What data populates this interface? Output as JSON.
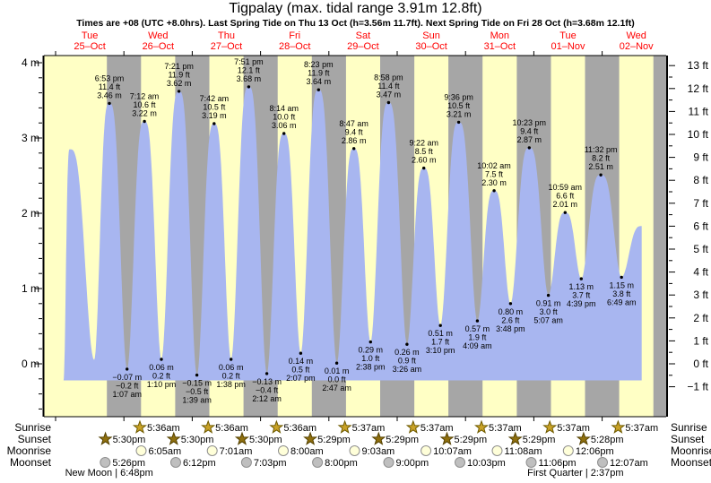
{
  "title": "Tigpalay (max. tidal range 3.91m 12.8ft)",
  "subtitle": "Times are +08 (UTC +8.0hrs). Last Spring Tide on Thu 13 Oct (h=3.56m 11.7ft). Next Spring Tide on Fri 28 Oct (h=3.68m 12.1ft)",
  "days": [
    {
      "name": "Tue",
      "date": "25–Oct"
    },
    {
      "name": "Wed",
      "date": "26–Oct"
    },
    {
      "name": "Thu",
      "date": "27–Oct"
    },
    {
      "name": "Fri",
      "date": "28–Oct"
    },
    {
      "name": "Sat",
      "date": "29–Oct"
    },
    {
      "name": "Sun",
      "date": "30–Oct"
    },
    {
      "name": "Mon",
      "date": "31–Oct"
    },
    {
      "name": "Tue",
      "date": "01–Nov"
    },
    {
      "name": "Wed",
      "date": "02–Nov"
    }
  ],
  "axes": {
    "left_ticks": [
      {
        "label": "4 m",
        "m": 4
      },
      {
        "label": "3 m",
        "m": 3
      },
      {
        "label": "2 m",
        "m": 2
      },
      {
        "label": "1 m",
        "m": 1
      },
      {
        "label": "0 m",
        "m": 0
      }
    ],
    "right_ticks": [
      {
        "label": "13 ft",
        "ft": 13
      },
      {
        "label": "12 ft",
        "ft": 12
      },
      {
        "label": "11 ft",
        "ft": 11
      },
      {
        "label": "10 ft",
        "ft": 10
      },
      {
        "label": "9 ft",
        "ft": 9
      },
      {
        "label": "8 ft",
        "ft": 8
      },
      {
        "label": "7 ft",
        "ft": 7
      },
      {
        "label": "6 ft",
        "ft": 6
      },
      {
        "label": "5 ft",
        "ft": 5
      },
      {
        "label": "4 ft",
        "ft": 4
      },
      {
        "label": "3 ft",
        "ft": 3
      },
      {
        "label": "2 ft",
        "ft": 2
      },
      {
        "label": "1 ft",
        "ft": 1
      },
      {
        "label": "0 ft",
        "ft": 0
      },
      {
        "label": "−1 ft",
        "ft": -1
      }
    ]
  },
  "chart_data": {
    "type": "area",
    "title": "Tigpalay (max. tidal range 3.91m 12.8ft)",
    "ylabel_left": "meters",
    "ylabel_right": "feet",
    "ylim_m": [
      -0.7,
      4.13
    ],
    "highs": [
      {
        "day": 0,
        "hours": 18.883,
        "m": 3.46,
        "labels": [
          "6:53 pm",
          "11.4 ft",
          "3.46 m"
        ]
      },
      {
        "day": 1,
        "hours": 7.2,
        "m": 3.22,
        "labels": [
          "7:12 am",
          "10.6 ft",
          "3.22 m"
        ]
      },
      {
        "day": 1,
        "hours": 19.35,
        "m": 3.62,
        "labels": [
          "7:21 pm",
          "11.9 ft",
          "3.62 m"
        ]
      },
      {
        "day": 2,
        "hours": 7.7,
        "m": 3.19,
        "labels": [
          "7:42 am",
          "10.5 ft",
          "3.19 m"
        ]
      },
      {
        "day": 2,
        "hours": 19.85,
        "m": 3.68,
        "labels": [
          "7:51 pm",
          "12.1 ft",
          "3.68 m"
        ]
      },
      {
        "day": 3,
        "hours": 8.233,
        "m": 3.06,
        "labels": [
          "8:14 am",
          "10.0 ft",
          "3.06 m"
        ]
      },
      {
        "day": 3,
        "hours": 20.383,
        "m": 3.64,
        "labels": [
          "8:23 pm",
          "11.9 ft",
          "3.64 m"
        ]
      },
      {
        "day": 4,
        "hours": 8.783,
        "m": 2.86,
        "labels": [
          "8:47 am",
          "9.4 ft",
          "2.86 m"
        ]
      },
      {
        "day": 4,
        "hours": 20.967,
        "m": 3.47,
        "labels": [
          "8:58 pm",
          "11.4 ft",
          "3.47 m"
        ]
      },
      {
        "day": 5,
        "hours": 9.367,
        "m": 2.6,
        "labels": [
          "9:22 am",
          "8.5 ft",
          "2.60 m"
        ]
      },
      {
        "day": 5,
        "hours": 21.6,
        "m": 3.21,
        "labels": [
          "9:36 pm",
          "10.5 ft",
          "3.21 m"
        ]
      },
      {
        "day": 6,
        "hours": 10.033,
        "m": 2.3,
        "labels": [
          "10:02 am",
          "7.5 ft",
          "2.30 m"
        ]
      },
      {
        "day": 6,
        "hours": 22.383,
        "m": 2.87,
        "labels": [
          "10:23 pm",
          "9.4 ft",
          "2.87 m"
        ]
      },
      {
        "day": 7,
        "hours": 10.983,
        "m": 2.01,
        "labels": [
          "10:59 am",
          "6.6 ft",
          "2.01 m"
        ]
      },
      {
        "day": 7,
        "hours": 23.533,
        "m": 2.51,
        "labels": [
          "11:32 pm",
          "8.2 ft",
          "2.51 m"
        ]
      }
    ],
    "lows": [
      {
        "day": 1,
        "hours": 1.117,
        "m": -0.07,
        "labels": [
          "−0.07 m",
          "−0.2 ft",
          "1:07 am"
        ]
      },
      {
        "day": 1,
        "hours": 13.167,
        "m": 0.06,
        "labels": [
          "0.06 m",
          "0.2 ft",
          "1:10 pm"
        ]
      },
      {
        "day": 2,
        "hours": 1.65,
        "m": -0.15,
        "labels": [
          "−0.15 m",
          "−0.5 ft",
          "1:39 am"
        ]
      },
      {
        "day": 2,
        "hours": 13.633,
        "m": 0.06,
        "labels": [
          "0.06 m",
          "0.2 ft",
          "1:38 pm"
        ]
      },
      {
        "day": 3,
        "hours": 2.2,
        "m": -0.13,
        "labels": [
          "−0.13 m",
          "−0.4 ft",
          "2:12 am"
        ]
      },
      {
        "day": 3,
        "hours": 14.117,
        "m": 0.14,
        "labels": [
          "0.14 m",
          "0.5 ft",
          "2:07 pm"
        ]
      },
      {
        "day": 4,
        "hours": 2.783,
        "m": 0.01,
        "labels": [
          "0.01 m",
          "0.0 ft",
          "2:47 am"
        ]
      },
      {
        "day": 4,
        "hours": 14.633,
        "m": 0.29,
        "labels": [
          "0.29 m",
          "1.0 ft",
          "2:38 pm"
        ]
      },
      {
        "day": 5,
        "hours": 3.433,
        "m": 0.26,
        "labels": [
          "0.26 m",
          "0.9 ft",
          "3:26 am"
        ]
      },
      {
        "day": 5,
        "hours": 15.167,
        "m": 0.51,
        "labels": [
          "0.51 m",
          "1.7 ft",
          "3:10 pm"
        ]
      },
      {
        "day": 6,
        "hours": 4.15,
        "m": 0.57,
        "labels": [
          "0.57 m",
          "1.9 ft",
          "4:09 am"
        ]
      },
      {
        "day": 6,
        "hours": 15.8,
        "m": 0.8,
        "labels": [
          "0.80 m",
          "2.6 ft",
          "3:48 pm"
        ]
      },
      {
        "day": 7,
        "hours": 5.117,
        "m": 0.91,
        "labels": [
          "0.91 m",
          "3.0 ft",
          "5:07 am"
        ]
      },
      {
        "day": 7,
        "hours": 16.65,
        "m": 1.13,
        "labels": [
          "1.13 m",
          "3.7 ft",
          "4:39 pm"
        ]
      },
      {
        "day": 8,
        "hours": 6.817,
        "m": 1.15,
        "labels": [
          "1.15 m",
          "3.8 ft",
          "6:49 am"
        ]
      }
    ],
    "curve_edge": {
      "start": {
        "day": 0,
        "hours": 2.8
      },
      "first_peak": {
        "day": 0,
        "hours": 5.0,
        "m": 2.85
      },
      "first_low": {
        "day": 0,
        "hours": 13.55,
        "m": 0.05
      },
      "end": {
        "day": 8,
        "hours": 13.9,
        "m": 1.83
      },
      "base_m": -0.22
    }
  },
  "astro": {
    "row_labels": [
      "Sunrise",
      "Sunset",
      "Moonrise",
      "Moonset"
    ],
    "sunrise": [
      {
        "day": 1,
        "hours": 5.6,
        "time": "5:36am"
      },
      {
        "day": 2,
        "hours": 5.6,
        "time": "5:36am"
      },
      {
        "day": 3,
        "hours": 5.6,
        "time": "5:36am"
      },
      {
        "day": 4,
        "hours": 5.617,
        "time": "5:37am"
      },
      {
        "day": 5,
        "hours": 5.617,
        "time": "5:37am"
      },
      {
        "day": 6,
        "hours": 5.617,
        "time": "5:37am"
      },
      {
        "day": 7,
        "hours": 5.617,
        "time": "5:37am"
      },
      {
        "day": 8,
        "hours": 5.617,
        "time": "5:37am"
      }
    ],
    "sunset": [
      {
        "day": 0,
        "hours": 17.5,
        "time": "5:30pm"
      },
      {
        "day": 1,
        "hours": 17.5,
        "time": "5:30pm"
      },
      {
        "day": 2,
        "hours": 17.5,
        "time": "5:30pm"
      },
      {
        "day": 3,
        "hours": 17.483,
        "time": "5:29pm"
      },
      {
        "day": 4,
        "hours": 17.483,
        "time": "5:29pm"
      },
      {
        "day": 5,
        "hours": 17.483,
        "time": "5:29pm"
      },
      {
        "day": 6,
        "hours": 17.483,
        "time": "5:29pm"
      },
      {
        "day": 7,
        "hours": 17.467,
        "time": "5:28pm"
      }
    ],
    "moonrise": [
      {
        "day": 1,
        "hours": 6.083,
        "time": "6:05am"
      },
      {
        "day": 2,
        "hours": 7.017,
        "time": "7:01am"
      },
      {
        "day": 3,
        "hours": 8.0,
        "time": "8:00am"
      },
      {
        "day": 4,
        "hours": 9.05,
        "time": "9:03am"
      },
      {
        "day": 5,
        "hours": 10.117,
        "time": "10:07am"
      },
      {
        "day": 6,
        "hours": 11.133,
        "time": "11:08am"
      },
      {
        "day": 7,
        "hours": 12.1,
        "time": "12:06pm"
      }
    ],
    "moonset": [
      {
        "day": 0,
        "hours": 17.433,
        "time": "5:26pm"
      },
      {
        "day": 1,
        "hours": 18.2,
        "time": "6:12pm"
      },
      {
        "day": 2,
        "hours": 19.05,
        "time": "7:03pm"
      },
      {
        "day": 3,
        "hours": 20.0,
        "time": "8:00pm"
      },
      {
        "day": 4,
        "hours": 21.0,
        "time": "9:00pm"
      },
      {
        "day": 5,
        "hours": 22.05,
        "time": "10:03pm"
      },
      {
        "day": 6,
        "hours": 23.1,
        "time": "11:06pm"
      },
      {
        "day": 8,
        "hours": 0.117,
        "time": "12:07am"
      }
    ],
    "phases": [
      {
        "name": "New Moon",
        "time": "6:48pm",
        "day": 0,
        "hours": 18.8
      },
      {
        "name": "First Quarter",
        "time": "2:37pm",
        "day": 7,
        "hours": 14.617
      }
    ]
  },
  "colors": {
    "day_band": "#ffffc5",
    "night_band": "#a6a6a6",
    "tide_fill": "#a8b6f0",
    "date_label": "#ff0000",
    "axis": "#000000",
    "sunrise_star": "#c9a227",
    "sunrise_star_edge": "#6f5b00",
    "sunset_star": "#8f6f0e",
    "sunset_star_edge": "#554200",
    "moonrise_fill": "#ffffd9",
    "moonset_fill": "#bfbfbf",
    "moon_edge": "#8f8f8f"
  }
}
